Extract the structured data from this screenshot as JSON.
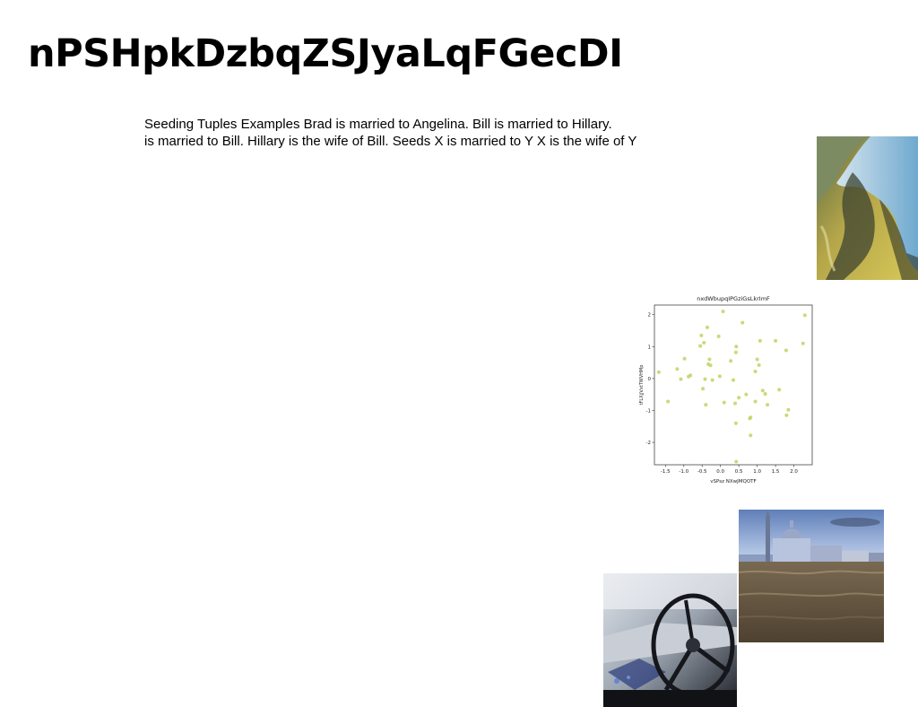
{
  "page": {
    "title": "nPSHpkDzbqZSJyaLqFGecDI",
    "paragraph_lines": [
      "Seeding Tuples Examples Brad is married to Angelina. Bill is married to Hillary.",
      "is married to Bill. Hillary is the wife of Bill. Seeds X is married to Y X is the wife of Y"
    ]
  },
  "images": {
    "aerial": "aerial-coast-photo",
    "venice": "venice-church-photo",
    "car": "car-interior-photo"
  },
  "chart_data": {
    "type": "scatter",
    "title": "nxdWbupqIPGziGsLkrImF",
    "xlabel": "vSPsz NXwJMQOTF",
    "ylabel": "tFLXjjVxtTWVHMp",
    "xlim": [
      -1.8,
      2.5
    ],
    "ylim": [
      -2.7,
      2.3
    ],
    "xticks": [
      "-1.5",
      "-1.0",
      "-0.5",
      "0.0",
      "0.5",
      "1.0",
      "1.5",
      "2.0"
    ],
    "xtick_values": [
      -1.5,
      -1.0,
      -0.5,
      0.0,
      0.5,
      1.0,
      1.5,
      2.0
    ],
    "yticks": [
      "2",
      "1",
      "0",
      "-1",
      "-2"
    ],
    "ytick_values": [
      2,
      1,
      0,
      -1,
      -2
    ],
    "grid": false,
    "color": "#c8d46a",
    "points": [
      [
        -1.68,
        0.2
      ],
      [
        -1.43,
        -0.72
      ],
      [
        -1.18,
        0.3
      ],
      [
        -1.08,
        -0.02
      ],
      [
        -0.98,
        0.62
      ],
      [
        -0.87,
        0.06
      ],
      [
        -0.82,
        0.1
      ],
      [
        -0.55,
        1.02
      ],
      [
        -0.52,
        1.35
      ],
      [
        -0.48,
        -0.32
      ],
      [
        -0.45,
        1.12
      ],
      [
        -0.42,
        -0.02
      ],
      [
        -0.4,
        -0.82
      ],
      [
        -0.36,
        1.6
      ],
      [
        -0.33,
        0.45
      ],
      [
        -0.3,
        0.6
      ],
      [
        -0.27,
        0.41
      ],
      [
        -0.22,
        -0.05
      ],
      [
        -0.05,
        1.32
      ],
      [
        -0.02,
        0.07
      ],
      [
        0.07,
        2.1
      ],
      [
        0.1,
        -0.75
      ],
      [
        0.28,
        0.55
      ],
      [
        0.35,
        -0.05
      ],
      [
        0.4,
        -0.78
      ],
      [
        0.42,
        0.82
      ],
      [
        0.42,
        -1.4
      ],
      [
        0.43,
        1.0
      ],
      [
        0.43,
        -2.6
      ],
      [
        0.5,
        -0.6
      ],
      [
        0.6,
        1.75
      ],
      [
        0.7,
        -0.5
      ],
      [
        0.8,
        -1.25
      ],
      [
        0.82,
        -1.78
      ],
      [
        0.82,
        -1.22
      ],
      [
        0.95,
        0.22
      ],
      [
        0.95,
        -0.72
      ],
      [
        1.0,
        0.6
      ],
      [
        1.05,
        0.42
      ],
      [
        1.08,
        1.18
      ],
      [
        1.15,
        -0.38
      ],
      [
        1.22,
        -0.48
      ],
      [
        1.28,
        -0.82
      ],
      [
        1.5,
        1.18
      ],
      [
        1.6,
        -0.35
      ],
      [
        1.79,
        0.88
      ],
      [
        1.8,
        -1.15
      ],
      [
        1.85,
        -0.98
      ],
      [
        2.25,
        1.1
      ],
      [
        2.3,
        1.98
      ]
    ]
  }
}
